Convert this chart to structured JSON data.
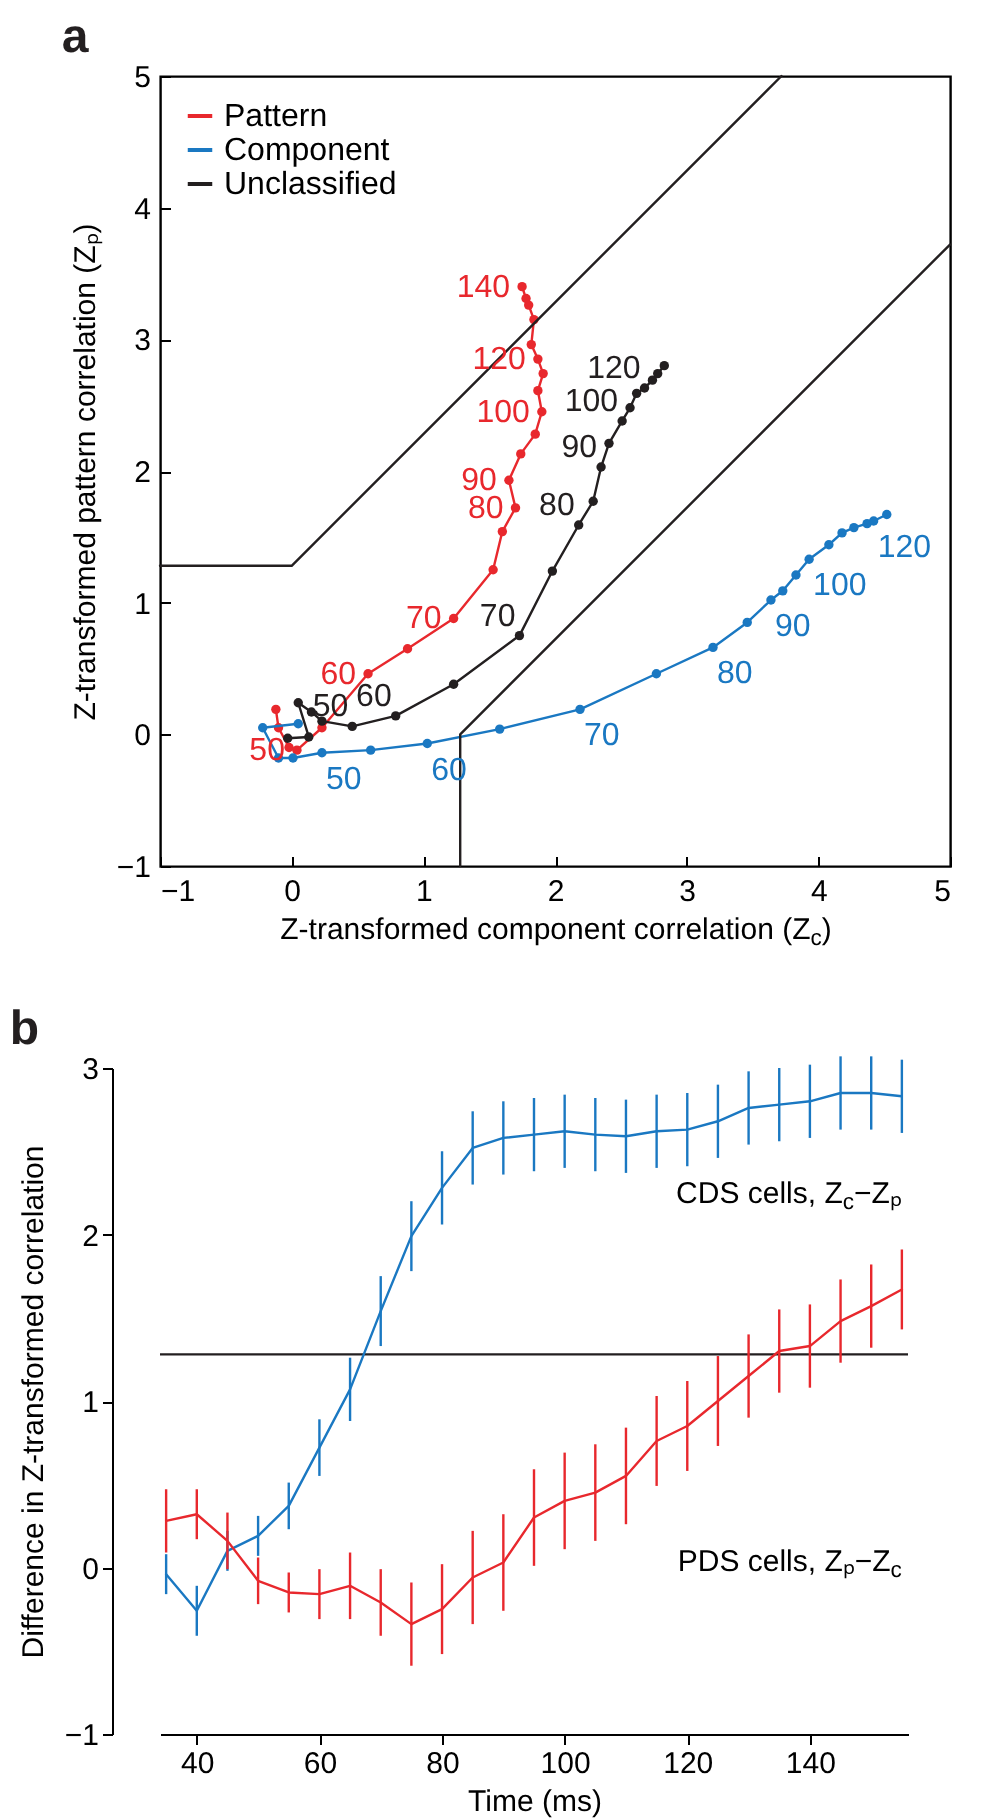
{
  "chart_data": [
    {
      "type": "line",
      "title": "a",
      "xlabel": "Z-transformed component correlation (Z$_{c}$)",
      "ylabel": "Z-transformed pattern correlation (Zₚ)",
      "xlim": [
        -1,
        5
      ],
      "ylim": [
        -1,
        5
      ],
      "xticks": [
        -1,
        0,
        1,
        2,
        3,
        4,
        5
      ],
      "yticks": [
        -1,
        0,
        1,
        2,
        3,
        4,
        5
      ],
      "marker": "circle",
      "legend": "top left",
      "series": [
        {
          "name": "Pattern",
          "color": "#e8282d",
          "x": [
            -0.12,
            -0.1,
            -0.02,
            0.04,
            0.23,
            0.58,
            0.88,
            1.23,
            1.53,
            1.6,
            1.7,
            1.65,
            1.74,
            1.85,
            1.9,
            1.87,
            1.91,
            1.87,
            1.82,
            1.84,
            1.8,
            1.78,
            1.75
          ],
          "values": [
            0.19,
            0.05,
            -0.1,
            -0.12,
            0.05,
            0.46,
            0.65,
            0.88,
            1.25,
            1.54,
            1.72,
            1.93,
            2.13,
            2.28,
            2.45,
            2.61,
            2.74,
            2.85,
            2.96,
            3.15,
            3.26,
            3.31,
            3.4
          ]
        },
        {
          "name": "Component",
          "color": "#1a78c2",
          "x": [
            0.05,
            -0.22,
            -0.1,
            0.01,
            0.23,
            0.6,
            1.03,
            1.58,
            2.19,
            2.77,
            3.2,
            3.46,
            3.64,
            3.73,
            3.83,
            3.93,
            4.08,
            4.18,
            4.27,
            4.37,
            4.42,
            4.52
          ],
          "values": [
            0.08,
            0.05,
            -0.18,
            -0.18,
            -0.14,
            -0.12,
            -0.07,
            0.04,
            0.19,
            0.46,
            0.66,
            0.85,
            1.02,
            1.09,
            1.21,
            1.33,
            1.44,
            1.53,
            1.57,
            1.6,
            1.62,
            1.67
          ]
        },
        {
          "name": "Unclassified",
          "color": "#231f20",
          "x": [
            -0.03,
            0.13,
            0.05,
            0.15,
            0.23,
            0.46,
            0.79,
            1.23,
            1.73,
            1.98,
            2.18,
            2.29,
            2.35,
            2.41,
            2.51,
            2.57,
            2.62,
            2.68,
            2.74,
            2.78,
            2.83
          ],
          "values": [
            -0.03,
            -0.02,
            0.24,
            0.17,
            0.1,
            0.06,
            0.14,
            0.38,
            0.75,
            1.24,
            1.59,
            1.77,
            2.03,
            2.21,
            2.38,
            2.48,
            2.59,
            2.63,
            2.69,
            2.74,
            2.8
          ]
        },
        {
          "color": "#231f20",
          "marker": "none",
          "x": [
            -1,
            0,
            3.72
          ],
          "values": [
            1.28,
            1.28,
            5
          ]
        },
        {
          "color": "#231f20",
          "marker": "none",
          "x": [
            1.28,
            1.28,
            5
          ],
          "values": [
            -1,
            0,
            3.72
          ]
        }
      ],
      "annotations": [
        {
          "text": "50",
          "x": 0.04,
          "y": -0.12
        },
        {
          "text": "60",
          "x": 0.58,
          "y": 0.46
        },
        {
          "text": "70",
          "x": 1.23,
          "y": 0.88
        },
        {
          "text": "80",
          "x": 1.7,
          "y": 1.72
        },
        {
          "text": "90",
          "x": 1.65,
          "y": 1.93
        },
        {
          "text": "100",
          "x": 1.9,
          "y": 2.45
        },
        {
          "text": "120",
          "x": 1.87,
          "y": 2.85
        },
        {
          "text": "140",
          "x": 1.75,
          "y": 3.4
        },
        {
          "text": "50",
          "x": 0.23,
          "y": -0.14
        },
        {
          "text": "60",
          "x": 1.03,
          "y": -0.07
        },
        {
          "text": "70",
          "x": 2.19,
          "y": 0.19
        },
        {
          "text": "80",
          "x": 3.2,
          "y": 0.66
        },
        {
          "text": "90",
          "x": 3.64,
          "y": 1.02
        },
        {
          "text": "100",
          "x": 3.93,
          "y": 1.33
        },
        {
          "text": "120",
          "x": 4.42,
          "y": 1.62
        },
        {
          "text": "50",
          "x": 0.46,
          "y": 0.06
        },
        {
          "text": "60",
          "x": 0.79,
          "y": 0.14
        },
        {
          "text": "70",
          "x": 1.73,
          "y": 0.75
        },
        {
          "text": "80",
          "x": 2.18,
          "y": 1.59
        },
        {
          "text": "90",
          "x": 2.35,
          "y": 2.03
        },
        {
          "text": "100",
          "x": 2.51,
          "y": 2.38
        },
        {
          "text": "120",
          "x": 2.68,
          "y": 2.63
        }
      ]
    },
    {
      "type": "line",
      "title": "b",
      "xlabel": "Time (ms)",
      "ylabel": "Difference in Z-transformed correlation",
      "xlim": [
        34,
        156
      ],
      "ylim": [
        -1,
        3
      ],
      "xticks": [
        40,
        60,
        80,
        100,
        120,
        140
      ],
      "yticks": [
        -1,
        0,
        1,
        2,
        3
      ],
      "x": [
        35,
        40,
        45,
        50,
        55,
        60,
        65,
        70,
        75,
        80,
        85,
        90,
        95,
        100,
        105,
        110,
        115,
        120,
        125,
        130,
        135,
        140,
        145,
        150,
        155
      ],
      "ref_lines": [
        {
          "axis": "y",
          "value": 1.28,
          "color": "#231f20"
        }
      ],
      "series": [
        {
          "name": "CDS cells, Z$_{c}$−Zₚ",
          "color": "#1a78c2",
          "values": [
            -0.04,
            -0.26,
            0.1,
            0.19,
            0.37,
            0.72,
            1.07,
            1.54,
            1.99,
            2.28,
            2.52,
            2.58,
            2.6,
            2.62,
            2.6,
            2.59,
            2.62,
            2.63,
            2.68,
            2.76,
            2.78,
            2.8,
            2.85,
            2.85,
            2.83
          ],
          "errors": [
            0.12,
            0.15,
            0.12,
            0.12,
            0.14,
            0.17,
            0.19,
            0.21,
            0.21,
            0.22,
            0.22,
            0.22,
            0.22,
            0.22,
            0.22,
            0.22,
            0.22,
            0.22,
            0.22,
            0.22,
            0.22,
            0.22,
            0.22,
            0.22,
            0.22
          ]
        },
        {
          "name": "PDS cells, Zₚ−Z$_{c}$",
          "color": "#e8282d",
          "values": [
            0.28,
            0.32,
            0.16,
            -0.08,
            -0.15,
            -0.16,
            -0.11,
            -0.21,
            -0.34,
            -0.25,
            -0.06,
            0.03,
            0.3,
            0.4,
            0.45,
            0.55,
            0.76,
            0.85,
            1.0,
            1.15,
            1.3,
            1.33,
            1.48,
            1.57,
            1.67
          ],
          "errors": [
            0.19,
            0.15,
            0.17,
            0.14,
            0.12,
            0.15,
            0.2,
            0.2,
            0.25,
            0.27,
            0.28,
            0.29,
            0.29,
            0.29,
            0.29,
            0.29,
            0.27,
            0.27,
            0.27,
            0.25,
            0.25,
            0.25,
            0.25,
            0.25,
            0.24
          ]
        }
      ]
    }
  ]
}
